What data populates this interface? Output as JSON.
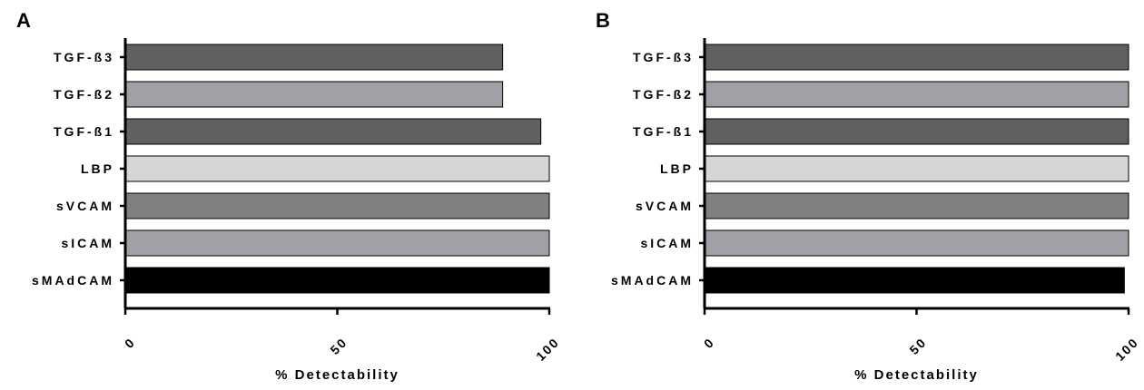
{
  "figure": {
    "panels": [
      "A",
      "B"
    ],
    "xlabel": "% Detectability"
  },
  "chart_data": [
    {
      "type": "bar",
      "orientation": "horizontal",
      "panel_label": "A",
      "categories": [
        "TGF-ß3",
        "TGF-ß2",
        "TGF-ß1",
        "LBP",
        "sVCAM",
        "sICAM",
        "sMAdCAM"
      ],
      "values": [
        89,
        89,
        98,
        100,
        100,
        100,
        100
      ],
      "colors": [
        "#606060",
        "#a0a0a6",
        "#606060",
        "#d6d6d6",
        "#808080",
        "#a0a0a6",
        "#000000"
      ],
      "xlabel": "% Detectability",
      "ylabel": "",
      "xlim": [
        0,
        100
      ],
      "xticks": [
        0,
        50,
        100
      ],
      "grid": false
    },
    {
      "type": "bar",
      "orientation": "horizontal",
      "panel_label": "B",
      "categories": [
        "TGF-ß3",
        "TGF-ß2",
        "TGF-ß1",
        "LBP",
        "sVCAM",
        "sICAM",
        "sMAdCAM"
      ],
      "values": [
        100,
        100,
        100,
        100,
        100,
        100,
        99
      ],
      "colors": [
        "#606060",
        "#a0a0a6",
        "#606060",
        "#d6d6d6",
        "#808080",
        "#a0a0a6",
        "#000000"
      ],
      "xlabel": "% Detectability",
      "ylabel": "",
      "xlim": [
        0,
        100
      ],
      "xticks": [
        0,
        50,
        100
      ],
      "grid": false
    }
  ]
}
